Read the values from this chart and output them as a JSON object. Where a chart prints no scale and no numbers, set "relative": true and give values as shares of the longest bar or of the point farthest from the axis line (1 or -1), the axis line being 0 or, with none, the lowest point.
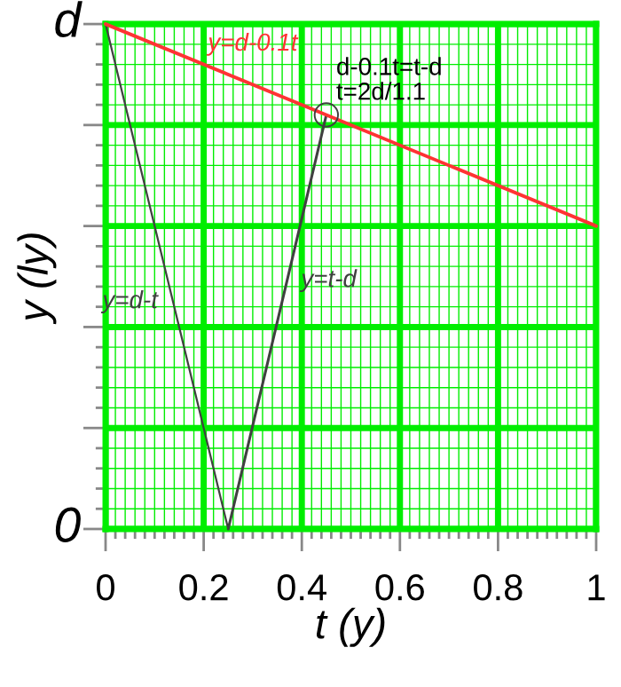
{
  "chart_data": {
    "type": "line",
    "relative": true,
    "xlabel": "t (y)",
    "ylabel": "y (ly)",
    "series": [
      {
        "name": "y=d-t",
        "color": "#404040",
        "x": [
          0,
          0.25
        ],
        "values": [
          1,
          0
        ]
      },
      {
        "name": "y=t-d",
        "color": "#404040",
        "x": [
          0.25,
          0.45
        ],
        "values": [
          0,
          0.82
        ]
      },
      {
        "name": "y=d-0.1t",
        "color": "#ff3333",
        "x": [
          0,
          1
        ],
        "values": [
          1,
          0.6
        ]
      },
      {
        "type": "scatter",
        "marker": "circle",
        "color": "#404040",
        "x": [
          0.45
        ],
        "values": [
          0.82
        ]
      }
    ],
    "annotations": [
      "d",
      "0",
      {
        "text": "d-0.1t=t-d\nt=2d/1.1",
        "x": 0.45,
        "y": 0.82
      }
    ],
    "xlim": [
      0,
      1
    ],
    "xticks": [
      0,
      {
        "value": 0.02,
        "label": null
      },
      {
        "value": 0.04,
        "label": null
      },
      {
        "value": 0.06,
        "label": null
      },
      {
        "value": 0.08,
        "label": null
      },
      {
        "value": 0.1,
        "label": null
      },
      {
        "value": 0.12,
        "label": null
      },
      {
        "value": 0.14,
        "label": null
      },
      {
        "value": 0.16,
        "label": null
      },
      {
        "value": 0.18,
        "label": null
      },
      0.2,
      {
        "value": 0.22,
        "label": null
      },
      {
        "value": 0.24,
        "label": null
      },
      {
        "value": 0.26,
        "label": null
      },
      {
        "value": 0.28,
        "label": null
      },
      {
        "value": 0.3,
        "label": null
      },
      {
        "value": 0.32,
        "label": null
      },
      {
        "value": 0.34,
        "label": null
      },
      {
        "value": 0.36,
        "label": null
      },
      {
        "value": 0.38,
        "label": null
      },
      0.4,
      {
        "value": 0.42,
        "label": null
      },
      {
        "value": 0.44,
        "label": null
      },
      {
        "value": 0.46,
        "label": null
      },
      {
        "value": 0.48,
        "label": null
      },
      {
        "value": 0.5,
        "label": null
      },
      {
        "value": 0.52,
        "label": null
      },
      {
        "value": 0.54,
        "label": null
      },
      {
        "value": 0.56,
        "label": null
      },
      {
        "value": 0.58,
        "label": null
      },
      0.6,
      {
        "value": 0.62,
        "label": null
      },
      {
        "value": 0.64,
        "label": null
      },
      {
        "value": 0.66,
        "label": null
      },
      {
        "value": 0.68,
        "label": null
      },
      {
        "value": 0.7,
        "label": null
      },
      {
        "value": 0.72,
        "label": null
      },
      {
        "value": 0.74,
        "label": null
      },
      {
        "value": 0.76,
        "label": null
      },
      {
        "value": 0.78,
        "label": null
      },
      0.8,
      {
        "value": 0.82,
        "label": null
      },
      {
        "value": 0.84,
        "label": null
      },
      {
        "value": 0.86,
        "label": null
      },
      {
        "value": 0.88,
        "label": null
      },
      {
        "value": 0.9,
        "label": null
      },
      {
        "value": 0.92,
        "label": null
      },
      {
        "value": 0.94,
        "label": null
      },
      {
        "value": 0.96,
        "label": null
      },
      {
        "value": 0.98,
        "label": null
      },
      1
    ],
    "grid": true,
    "line_style": "solid",
    "legend": false
  }
}
